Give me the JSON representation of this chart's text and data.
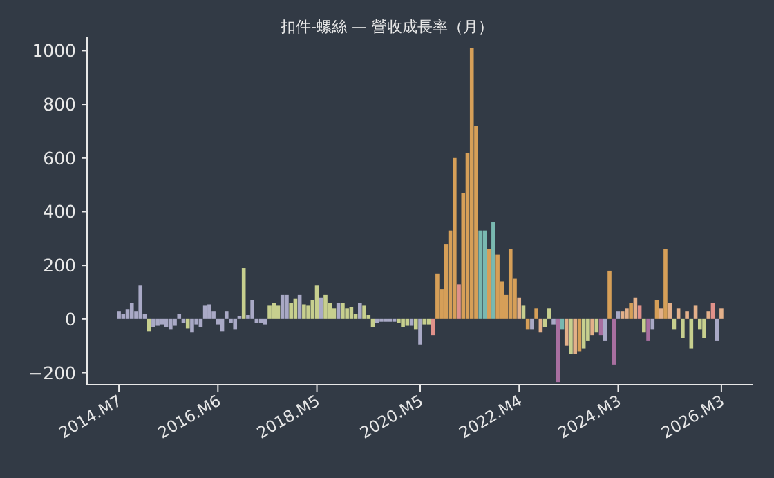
{
  "chart_data": {
    "type": "bar",
    "title": "扣件-螺絲 — 營收成長率（月）",
    "categories": [
      "2014.M7",
      null,
      null,
      null,
      null,
      null,
      null,
      null,
      null,
      null,
      null,
      null,
      null,
      null,
      null,
      null,
      null,
      null,
      null,
      null,
      null,
      null,
      null,
      "2016.M6",
      null,
      null,
      null,
      null,
      null,
      null,
      null,
      null,
      null,
      null,
      null,
      null,
      null,
      null,
      null,
      null,
      null,
      null,
      null,
      null,
      null,
      null,
      "2018.M5",
      null,
      null,
      null,
      null,
      null,
      null,
      null,
      null,
      null,
      null,
      null,
      null,
      null,
      null,
      null,
      null,
      null,
      null,
      null,
      null,
      null,
      null,
      null,
      "2020.M5",
      null,
      null,
      null,
      null,
      null,
      null,
      null,
      null,
      null,
      null,
      null,
      null,
      null,
      null,
      null,
      null,
      null,
      null,
      null,
      null,
      null,
      null,
      "2022.M4",
      null,
      null,
      null,
      null,
      null,
      null,
      null,
      null,
      null,
      null,
      null,
      null,
      null,
      null,
      null,
      null,
      null,
      null,
      null,
      null,
      null,
      null,
      "2024.M3",
      null,
      null,
      null,
      null,
      null,
      null,
      null,
      null,
      null,
      null,
      null,
      null,
      null,
      null,
      null,
      null,
      null,
      null,
      null,
      null,
      null,
      null,
      null,
      "2026.M3"
    ],
    "values": [
      30,
      20,
      35,
      60,
      30,
      125,
      20,
      -45,
      -30,
      -25,
      -20,
      -30,
      -40,
      -25,
      20,
      -15,
      -35,
      -50,
      -20,
      -30,
      50,
      55,
      30,
      -20,
      -45,
      30,
      -15,
      -40,
      10,
      190,
      15,
      70,
      -15,
      -15,
      -20,
      50,
      60,
      50,
      90,
      90,
      60,
      75,
      90,
      55,
      50,
      70,
      125,
      80,
      90,
      60,
      40,
      60,
      60,
      40,
      45,
      20,
      60,
      50,
      15,
      -30,
      -15,
      -10,
      -10,
      -10,
      -10,
      -15,
      -30,
      -25,
      -25,
      -40,
      -95,
      -20,
      -20,
      -60,
      170,
      110,
      280,
      330,
      600,
      130,
      470,
      620,
      1010,
      720,
      330,
      330,
      260,
      360,
      240,
      140,
      90,
      260,
      150,
      80,
      50,
      -40,
      -40,
      40,
      -50,
      -30,
      40,
      -20,
      -235,
      -40,
      -100,
      -130,
      -130,
      -120,
      -110,
      -80,
      -60,
      -50,
      -60,
      -80,
      180,
      -170,
      30,
      30,
      40,
      60,
      80,
      50,
      -50,
      -80,
      -40,
      70,
      40,
      260,
      60,
      -40,
      40,
      -70,
      30,
      -110,
      50,
      -40,
      -70,
      30,
      60,
      -80,
      40
    ],
    "colors": [
      "#a9a9c6",
      "#a9a9c6",
      "#a9a9c6",
      "#a9a9c6",
      "#a9a9c6",
      "#a9a9c6",
      "#a9a9c6",
      "#c7cf8e",
      "#a9a9c6",
      "#a9a9c6",
      "#a9a9c6",
      "#a9a9c6",
      "#a9a9c6",
      "#a9a9c6",
      "#a9a9c6",
      "#a9a9c6",
      "#c7cf8e",
      "#a9a9c6",
      "#a9a9c6",
      "#a9a9c6",
      "#a9a9c6",
      "#a9a9c6",
      "#a9a9c6",
      "#a9a9c6",
      "#a9a9c6",
      "#a9a9c6",
      "#a9a9c6",
      "#a9a9c6",
      "#a9a9c6",
      "#c7cf8e",
      "#a9a9c6",
      "#a9a9c6",
      "#a9a9c6",
      "#a9a9c6",
      "#a9a9c6",
      "#c7cf8e",
      "#c7cf8e",
      "#c7cf8e",
      "#a9a9c6",
      "#a9a9c6",
      "#c7cf8e",
      "#c7cf8e",
      "#a9a9c6",
      "#c7cf8e",
      "#c7cf8e",
      "#c7cf8e",
      "#c7cf8e",
      "#a9a9c6",
      "#c7cf8e",
      "#c7cf8e",
      "#c7cf8e",
      "#a9a9c6",
      "#c7cf8e",
      "#c7cf8e",
      "#c7cf8e",
      "#c7cf8e",
      "#a9a9c6",
      "#c7cf8e",
      "#c7cf8e",
      "#c7cf8e",
      "#a9a9c6",
      "#a9a9c6",
      "#a9a9c6",
      "#a9a9c6",
      "#a9a9c6",
      "#c7cf8e",
      "#c7cf8e",
      "#c7cf8e",
      "#a9a9c6",
      "#c7cf8e",
      "#a9a9c6",
      "#c7cf8e",
      "#c7cf8e",
      "#e0918a",
      "#d69f58",
      "#d69f58",
      "#d69f58",
      "#d69f58",
      "#d69f58",
      "#e0918a",
      "#d69f58",
      "#d69f58",
      "#d69f58",
      "#d69f58",
      "#79b8b0",
      "#79b8b0",
      "#d69f58",
      "#79b8b0",
      "#d69f58",
      "#d69f58",
      "#d69f58",
      "#d69f58",
      "#d69f58",
      "#e3b08a",
      "#c7cf8e",
      "#d69f58",
      "#a9a9c6",
      "#d69f58",
      "#e3b08a",
      "#c7cf8e",
      "#c7cf8e",
      "#a9a9c6",
      "#a86fa0",
      "#79b8b0",
      "#e3b08a",
      "#c7cf8e",
      "#e3b08a",
      "#d69f58",
      "#c7cf8e",
      "#c7cf8e",
      "#e3b08a",
      "#c7cf8e",
      "#a86fa0",
      "#a9a9c6",
      "#d69f58",
      "#a86fa0",
      "#a9a9c6",
      "#e3b08a",
      "#e3b08a",
      "#d69f58",
      "#e3b08a",
      "#e0918a",
      "#c7cf8e",
      "#a86fa0",
      "#a9a9c6",
      "#d69f58",
      "#e3b08a",
      "#d69f58",
      "#e3b08a",
      "#c7cf8e",
      "#e3b08a",
      "#c7cf8e",
      "#e3b08a",
      "#c7cf8e",
      "#e3b08a",
      "#c7cf8e",
      "#c7cf8e",
      "#e3b08a",
      "#e0918a",
      "#a9a9c6",
      "#e3b08a"
    ],
    "ylim": [
      -245,
      1050
    ],
    "yticks": [
      -200,
      0,
      200,
      400,
      600,
      800,
      1000
    ]
  }
}
